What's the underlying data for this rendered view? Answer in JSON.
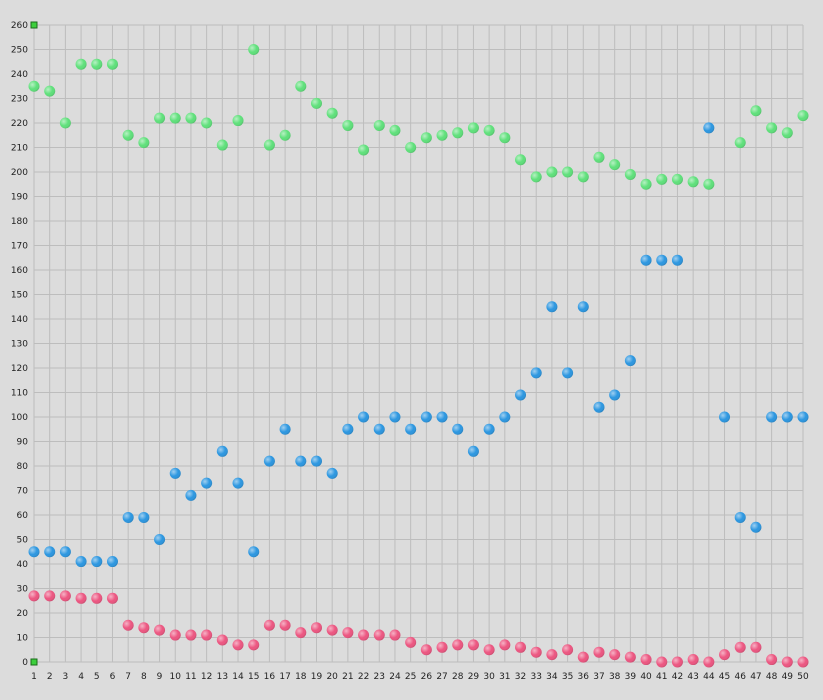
{
  "chart_data": {
    "type": "scatter",
    "x": [
      1,
      2,
      3,
      4,
      5,
      6,
      7,
      8,
      9,
      10,
      11,
      12,
      13,
      14,
      15,
      16,
      17,
      18,
      19,
      20,
      21,
      22,
      23,
      24,
      25,
      26,
      27,
      28,
      29,
      30,
      31,
      32,
      33,
      34,
      35,
      36,
      37,
      38,
      39,
      40,
      41,
      42,
      43,
      44,
      45,
      46,
      47,
      48,
      49,
      50
    ],
    "xlim": [
      1,
      50
    ],
    "ylim": [
      0,
      260
    ],
    "y_ticks": [
      0,
      10,
      20,
      30,
      40,
      50,
      60,
      70,
      80,
      90,
      100,
      110,
      120,
      130,
      140,
      150,
      160,
      170,
      180,
      190,
      200,
      210,
      220,
      230,
      240,
      250,
      260
    ],
    "grid": true,
    "legend": "none",
    "series": [
      {
        "color": "#5ee07a",
        "points": [
          [
            1,
            235
          ],
          [
            2,
            233
          ],
          [
            3,
            220
          ],
          [
            4,
            244
          ],
          [
            5,
            244
          ],
          [
            6,
            244
          ],
          [
            7,
            215
          ],
          [
            8,
            212
          ],
          [
            9,
            222
          ],
          [
            10,
            222
          ],
          [
            11,
            222
          ],
          [
            12,
            220
          ],
          [
            13,
            211
          ],
          [
            14,
            221
          ],
          [
            15,
            250
          ],
          [
            16,
            211
          ],
          [
            17,
            215
          ],
          [
            18,
            235
          ],
          [
            19,
            228
          ],
          [
            20,
            224
          ],
          [
            21,
            219
          ],
          [
            22,
            209
          ],
          [
            23,
            219
          ],
          [
            24,
            217
          ],
          [
            25,
            210
          ],
          [
            26,
            214
          ],
          [
            27,
            215
          ],
          [
            28,
            216
          ],
          [
            29,
            218
          ],
          [
            30,
            217
          ],
          [
            31,
            214
          ],
          [
            32,
            205
          ],
          [
            33,
            198
          ],
          [
            34,
            200
          ],
          [
            35,
            200
          ],
          [
            36,
            198
          ],
          [
            37,
            206
          ],
          [
            38,
            203
          ],
          [
            39,
            199
          ],
          [
            40,
            195
          ],
          [
            41,
            197
          ],
          [
            42,
            197
          ],
          [
            43,
            196
          ],
          [
            44,
            195
          ],
          [
            46,
            212
          ],
          [
            47,
            225
          ],
          [
            48,
            218
          ],
          [
            49,
            216
          ],
          [
            50,
            223
          ]
        ]
      },
      {
        "color": "#2b96e0",
        "points": [
          [
            1,
            45
          ],
          [
            2,
            45
          ],
          [
            3,
            45
          ],
          [
            4,
            41
          ],
          [
            5,
            41
          ],
          [
            6,
            41
          ],
          [
            7,
            59
          ],
          [
            8,
            59
          ],
          [
            9,
            50
          ],
          [
            10,
            77
          ],
          [
            11,
            68
          ],
          [
            12,
            73
          ],
          [
            13,
            86
          ],
          [
            14,
            73
          ],
          [
            15,
            45
          ],
          [
            16,
            82
          ],
          [
            17,
            95
          ],
          [
            18,
            82
          ],
          [
            19,
            82
          ],
          [
            20,
            77
          ],
          [
            21,
            95
          ],
          [
            22,
            100
          ],
          [
            23,
            95
          ],
          [
            24,
            100
          ],
          [
            25,
            95
          ],
          [
            26,
            100
          ],
          [
            27,
            100
          ],
          [
            28,
            95
          ],
          [
            29,
            86
          ],
          [
            30,
            95
          ],
          [
            31,
            100
          ],
          [
            32,
            109
          ],
          [
            33,
            118
          ],
          [
            34,
            145
          ],
          [
            35,
            118
          ],
          [
            36,
            145
          ],
          [
            37,
            104
          ],
          [
            38,
            109
          ],
          [
            39,
            123
          ],
          [
            40,
            164
          ],
          [
            41,
            164
          ],
          [
            42,
            164
          ],
          [
            44,
            218
          ],
          [
            45,
            100
          ],
          [
            46,
            59
          ],
          [
            47,
            55
          ],
          [
            48,
            100
          ],
          [
            49,
            100
          ],
          [
            50,
            100
          ]
        ]
      },
      {
        "color": "#ec5580",
        "points": [
          [
            1,
            27
          ],
          [
            2,
            27
          ],
          [
            3,
            27
          ],
          [
            4,
            26
          ],
          [
            5,
            26
          ],
          [
            6,
            26
          ],
          [
            7,
            15
          ],
          [
            8,
            14
          ],
          [
            9,
            13
          ],
          [
            10,
            11
          ],
          [
            11,
            11
          ],
          [
            12,
            11
          ],
          [
            13,
            9
          ],
          [
            14,
            7
          ],
          [
            15,
            7
          ],
          [
            16,
            15
          ],
          [
            17,
            15
          ],
          [
            18,
            12
          ],
          [
            19,
            14
          ],
          [
            20,
            13
          ],
          [
            21,
            12
          ],
          [
            22,
            11
          ],
          [
            23,
            11
          ],
          [
            24,
            11
          ],
          [
            25,
            8
          ],
          [
            26,
            5
          ],
          [
            27,
            6
          ],
          [
            28,
            7
          ],
          [
            29,
            7
          ],
          [
            30,
            5
          ],
          [
            31,
            7
          ],
          [
            32,
            6
          ],
          [
            33,
            4
          ],
          [
            34,
            3
          ],
          [
            35,
            5
          ],
          [
            36,
            2
          ],
          [
            37,
            4
          ],
          [
            38,
            3
          ],
          [
            39,
            2
          ],
          [
            40,
            1
          ],
          [
            41,
            0
          ],
          [
            42,
            0
          ],
          [
            43,
            1
          ],
          [
            44,
            0
          ],
          [
            45,
            3
          ],
          [
            46,
            6
          ],
          [
            47,
            6
          ],
          [
            48,
            1
          ],
          [
            49,
            0
          ],
          [
            50,
            0
          ]
        ]
      }
    ],
    "markers": [
      [
        1,
        260
      ],
      [
        1,
        0
      ]
    ],
    "marker_color": "#3ccf3c"
  }
}
